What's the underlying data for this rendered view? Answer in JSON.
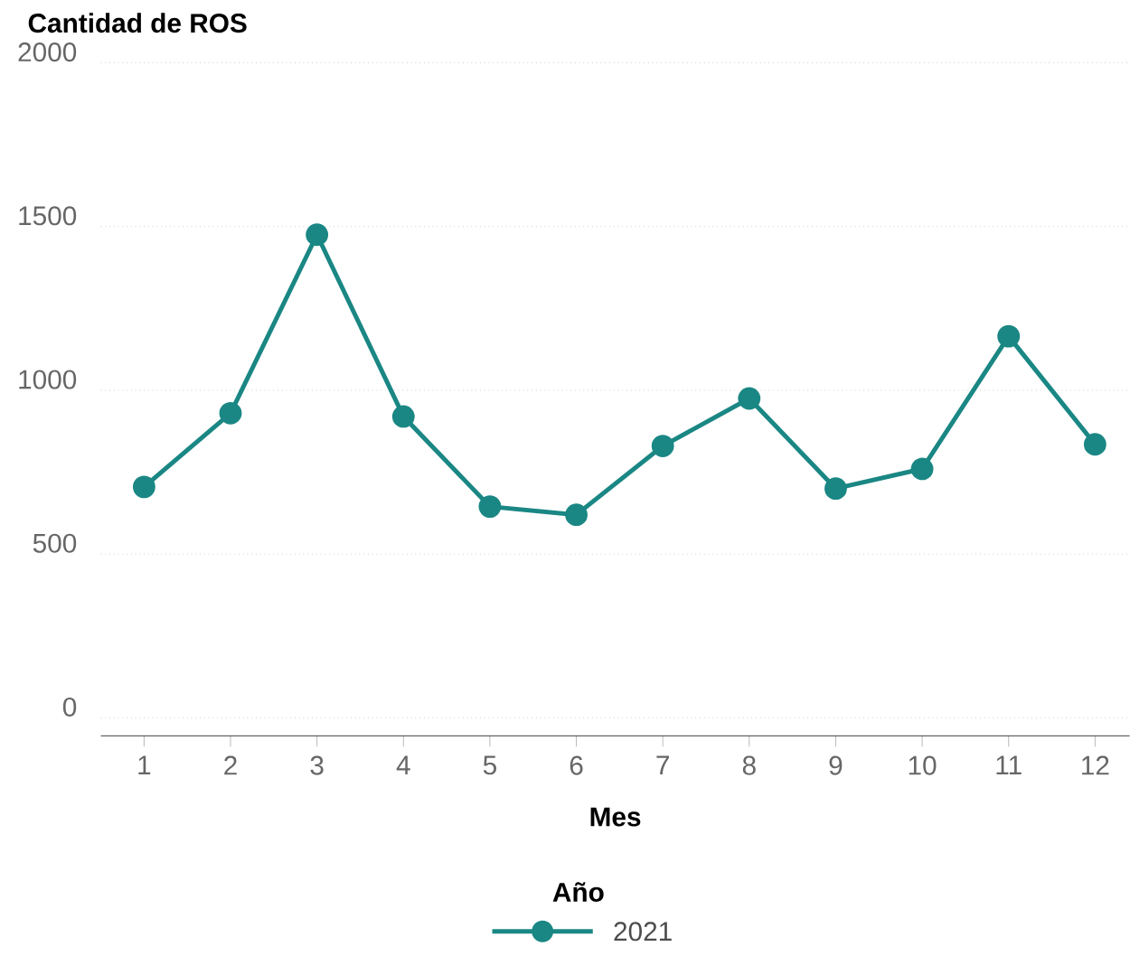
{
  "chart_data": {
    "type": "line",
    "title": "Cantidad de ROS",
    "xlabel": "Mes",
    "legend_title": "Año",
    "categories": [
      "1",
      "2",
      "3",
      "4",
      "5",
      "6",
      "7",
      "8",
      "9",
      "10",
      "11",
      "12"
    ],
    "series": [
      {
        "name": "2021",
        "color": "#1a8784",
        "values": [
          705,
          930,
          1475,
          920,
          645,
          620,
          830,
          975,
          700,
          760,
          1165,
          835
        ]
      }
    ],
    "ylim": [
      -55,
      2000
    ],
    "yticks": [
      0,
      500,
      1000,
      1500,
      2000
    ],
    "grid": "y",
    "legend": "bottom",
    "marker": "circle",
    "line_style": "solid"
  }
}
